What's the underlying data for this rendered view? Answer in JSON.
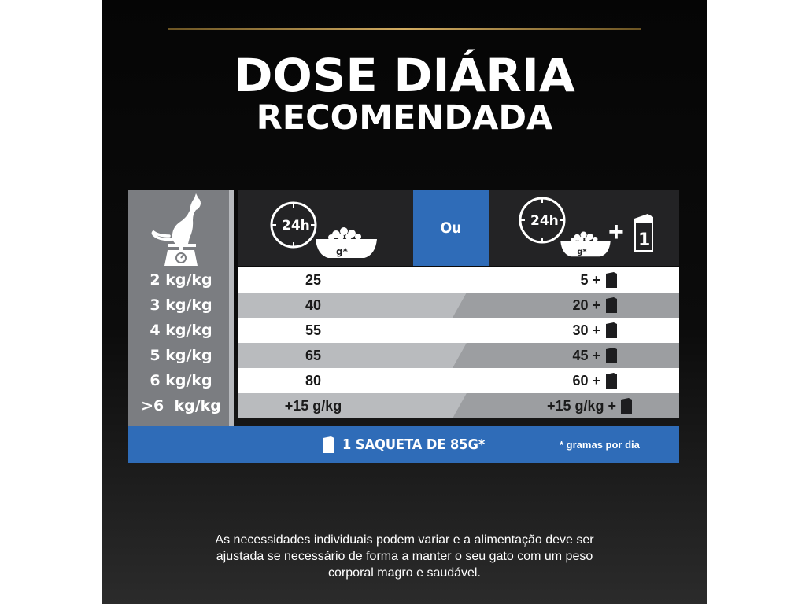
{
  "title": {
    "line1": "DOSE DIÁRIA",
    "line2": "RECOMENDADA"
  },
  "table": {
    "header": {
      "left_hours": "24h",
      "left_unit": "g*",
      "separator": "Ou",
      "right_hours": "24h",
      "right_unit": "g*",
      "plus": "+",
      "pouch_count": "1"
    },
    "rows": [
      {
        "weight": "2 kg/kg",
        "dry_only": "25",
        "mixed": "5 +"
      },
      {
        "weight": "3 kg/kg",
        "dry_only": "40",
        "mixed": "20 +"
      },
      {
        "weight": "4 kg/kg",
        "dry_only": "55",
        "mixed": "30 +"
      },
      {
        "weight": "5 kg/kg",
        "dry_only": "65",
        "mixed": "45 +"
      },
      {
        "weight": "6 kg/kg",
        "dry_only": "80",
        "mixed": "60 +"
      },
      {
        "weight": ">6  kg/kg",
        "dry_only": "+15 g/kg",
        "mixed": "+15 g/kg +"
      }
    ],
    "footer": {
      "pouch_label": "1 SAQUETA DE 85G*",
      "note": "* gramas por dia"
    }
  },
  "disclaimer": {
    "line1": "As necessidades individuais podem variar e a alimentação deve ser",
    "line2": "ajustada se necessário de forma a manter o seu gato com um peso",
    "line3": "corporal magro e saudável."
  },
  "icons": {
    "cat_on_scale": "cat-scale-icon",
    "clock": "clock-24h-icon",
    "bowl": "food-bowl-icon",
    "pouch": "pouch-icon"
  },
  "colors": {
    "accent_blue": "#2f6cb8",
    "gold": "#d2ac62",
    "dark": "#232325",
    "grey_col": "#7b7d81"
  }
}
